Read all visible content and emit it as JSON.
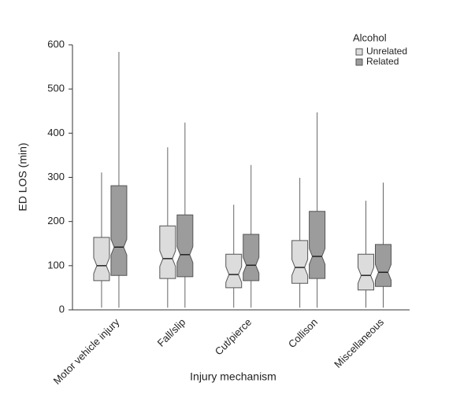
{
  "chart_data": {
    "type": "box",
    "x_label": "Injury mechanism",
    "y_label": "ED LOS (min)",
    "legend_title": "Alcohol",
    "legend_position": "upper right",
    "categories": [
      "Motor vehicle injury",
      "Fall/slip",
      "Cut/pierce",
      "Collison",
      "Miscellaneous"
    ],
    "series": [
      {
        "name": "Unrelated",
        "color": "#dcdcdc",
        "min": [
          5,
          5,
          5,
          5,
          5
        ],
        "q1": [
          66,
          71,
          50,
          60,
          45
        ],
        "median": [
          100,
          116,
          80,
          96,
          78
        ],
        "q3": [
          164,
          190,
          126,
          157,
          126
        ],
        "max": [
          311,
          368,
          238,
          299,
          247
        ]
      },
      {
        "name": "Related",
        "color": "#9c9c9c",
        "min": [
          5,
          5,
          5,
          5,
          5
        ],
        "q1": [
          78,
          75,
          66,
          71,
          53
        ],
        "median": [
          142,
          125,
          101,
          121,
          85
        ],
        "q3": [
          281,
          215,
          171,
          223,
          148
        ],
        "max": [
          584,
          424,
          328,
          447,
          288
        ]
      }
    ],
    "ylim": [
      0,
      600
    ],
    "yticks": [
      0,
      100,
      200,
      300,
      400,
      500,
      600
    ]
  }
}
